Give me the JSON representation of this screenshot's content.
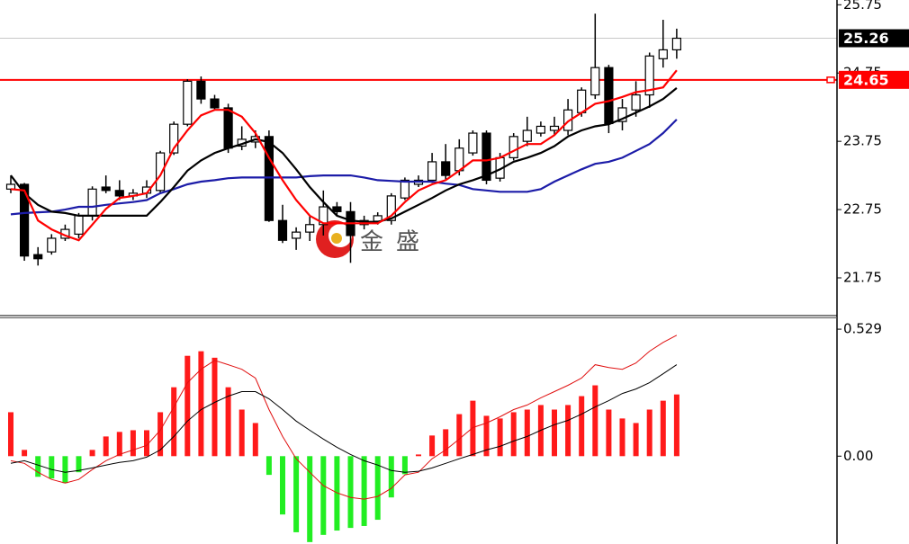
{
  "chart_data": [
    {
      "type": "candlestick",
      "open": [
        23.05,
        23.12,
        22.09,
        22.13,
        22.33,
        22.39,
        22.66,
        23.08,
        23.03,
        22.95,
        22.99,
        23.03,
        23.58,
        24.0,
        24.63,
        24.37,
        24.24,
        23.68,
        23.74,
        23.82,
        22.59,
        22.33,
        22.42,
        22.53,
        22.79,
        22.72,
        22.53,
        22.58,
        22.59,
        22.92,
        23.12,
        23.18,
        23.45,
        23.32,
        23.58,
        23.87,
        23.21,
        23.51,
        23.75,
        23.87,
        23.91,
        23.91,
        24.17,
        24.43,
        24.83,
        24.04,
        24.21,
        24.43,
        24.96,
        25.09
      ],
      "high": [
        23.25,
        23.14,
        22.2,
        22.39,
        22.53,
        22.7,
        23.09,
        23.25,
        23.18,
        23.05,
        23.18,
        23.61,
        24.04,
        24.66,
        24.7,
        24.43,
        24.3,
        23.97,
        23.91,
        23.91,
        22.82,
        22.49,
        22.66,
        23.03,
        22.86,
        22.86,
        22.66,
        22.71,
        22.99,
        23.22,
        23.25,
        23.58,
        23.71,
        23.78,
        23.91,
        23.91,
        23.58,
        23.87,
        24.11,
        24.04,
        24.11,
        24.37,
        24.54,
        25.62,
        24.87,
        24.37,
        24.63,
        25.05,
        25.53,
        25.4
      ],
      "low": [
        22.99,
        22.0,
        21.93,
        22.09,
        22.29,
        22.33,
        22.59,
        22.99,
        22.89,
        22.89,
        22.92,
        22.99,
        23.55,
        23.97,
        24.3,
        24.2,
        23.58,
        23.62,
        23.65,
        22.57,
        22.26,
        22.16,
        22.29,
        22.37,
        22.66,
        21.97,
        22.46,
        22.53,
        22.53,
        22.89,
        23.08,
        23.14,
        23.18,
        23.25,
        23.54,
        23.12,
        23.16,
        23.47,
        23.68,
        23.82,
        23.84,
        23.84,
        24.11,
        24.37,
        23.87,
        23.91,
        24.11,
        24.24,
        24.83,
        24.96
      ],
      "close": [
        23.12,
        22.07,
        22.03,
        22.33,
        22.46,
        22.66,
        23.05,
        23.03,
        22.95,
        22.99,
        23.08,
        23.58,
        24.0,
        24.63,
        24.37,
        24.24,
        23.65,
        23.78,
        23.82,
        22.59,
        22.3,
        22.42,
        22.53,
        22.79,
        22.72,
        22.37,
        22.59,
        22.66,
        22.95,
        23.18,
        23.18,
        23.45,
        23.25,
        23.65,
        23.87,
        23.18,
        23.51,
        23.82,
        23.91,
        23.97,
        23.97,
        24.21,
        24.5,
        24.83,
        24.01,
        24.24,
        24.43,
        25.0,
        25.09,
        25.26
      ],
      "up_color": "#ffffff",
      "down_color": "#000000",
      "lines": [
        {
          "color": "#1c1ca8",
          "values": [
            22.68,
            22.7,
            22.71,
            22.72,
            22.75,
            22.79,
            22.79,
            22.82,
            22.84,
            22.86,
            22.89,
            22.99,
            23.05,
            23.12,
            23.16,
            23.18,
            23.21,
            23.22,
            23.22,
            23.22,
            23.22,
            23.22,
            23.24,
            23.25,
            23.25,
            23.25,
            23.22,
            23.18,
            23.17,
            23.16,
            23.16,
            23.16,
            23.13,
            23.11,
            23.05,
            23.03,
            23.01,
            23.01,
            23.01,
            23.05,
            23.16,
            23.25,
            23.34,
            23.42,
            23.45,
            23.51,
            23.61,
            23.71,
            23.87,
            24.07
          ]
        },
        {
          "color": "#000000",
          "values": [
            23.25,
            22.99,
            22.82,
            22.72,
            22.7,
            22.66,
            22.66,
            22.66,
            22.66,
            22.66,
            22.66,
            22.86,
            23.08,
            23.32,
            23.47,
            23.58,
            23.65,
            23.71,
            23.78,
            23.74,
            23.58,
            23.34,
            23.08,
            22.86,
            22.66,
            22.59,
            22.57,
            22.57,
            22.62,
            22.72,
            22.82,
            22.92,
            23.03,
            23.12,
            23.18,
            23.25,
            23.34,
            23.45,
            23.51,
            23.58,
            23.68,
            23.82,
            23.91,
            23.97,
            24.0,
            24.08,
            24.17,
            24.26,
            24.37,
            24.53
          ]
        },
        {
          "color": "#ff0000",
          "values": [
            23.05,
            23.03,
            22.59,
            22.46,
            22.37,
            22.3,
            22.53,
            22.76,
            22.92,
            22.95,
            22.99,
            23.25,
            23.65,
            23.91,
            24.13,
            24.21,
            24.21,
            24.11,
            23.87,
            23.51,
            23.18,
            22.89,
            22.66,
            22.55,
            22.55,
            22.55,
            22.55,
            22.55,
            22.66,
            22.86,
            23.03,
            23.12,
            23.18,
            23.32,
            23.47,
            23.47,
            23.51,
            23.61,
            23.71,
            23.71,
            23.84,
            24.04,
            24.17,
            24.3,
            24.34,
            24.4,
            24.47,
            24.5,
            24.54,
            24.79
          ]
        }
      ],
      "price_lines": [
        {
          "value": 25.26,
          "color": "#000000",
          "line_color": "#c8c8c8"
        },
        {
          "value": 24.65,
          "color": "#ff0000",
          "line_color": "#ff0000"
        }
      ],
      "watermark": "金盛",
      "ylim": [
        21.21,
        25.82
      ],
      "yticks": [
        21.75,
        22.75,
        23.75,
        24.75,
        25.75
      ]
    },
    {
      "type": "macd",
      "values": [
        0.183,
        0.026,
        -0.086,
        -0.093,
        -0.112,
        -0.067,
        0.026,
        0.082,
        0.101,
        0.108,
        0.108,
        0.183,
        0.287,
        0.418,
        0.437,
        0.41,
        0.287,
        0.194,
        0.138,
        -0.078,
        -0.243,
        -0.317,
        -0.358,
        -0.328,
        -0.31,
        -0.299,
        -0.291,
        -0.265,
        -0.172,
        -0.075,
        0.007,
        0.086,
        0.112,
        0.175,
        0.231,
        0.168,
        0.157,
        0.183,
        0.194,
        0.213,
        0.194,
        0.213,
        0.25,
        0.295,
        0.194,
        0.157,
        0.138,
        0.194,
        0.231,
        0.257
      ],
      "positive_color": "#ff1a1a",
      "negative_color": "#22ee22",
      "lines": [
        {
          "color": "#e01010",
          "values": [
            -0.019,
            -0.03,
            -0.067,
            -0.097,
            -0.112,
            -0.097,
            -0.056,
            -0.019,
            0.007,
            0.026,
            0.045,
            0.108,
            0.205,
            0.306,
            0.362,
            0.399,
            0.381,
            0.362,
            0.325,
            0.194,
            0.082,
            -0.011,
            -0.067,
            -0.123,
            -0.153,
            -0.172,
            -0.179,
            -0.168,
            -0.134,
            -0.078,
            -0.067,
            -0.011,
            0.026,
            0.071,
            0.119,
            0.138,
            0.164,
            0.194,
            0.213,
            0.243,
            0.269,
            0.295,
            0.325,
            0.381,
            0.369,
            0.362,
            0.388,
            0.437,
            0.474,
            0.504
          ]
        },
        {
          "color": "#000000",
          "values": [
            -0.03,
            -0.019,
            -0.037,
            -0.056,
            -0.067,
            -0.06,
            -0.049,
            -0.037,
            -0.026,
            -0.019,
            -0.004,
            0.026,
            0.082,
            0.146,
            0.194,
            0.224,
            0.25,
            0.269,
            0.269,
            0.239,
            0.194,
            0.146,
            0.108,
            0.071,
            0.037,
            0.007,
            -0.019,
            -0.037,
            -0.06,
            -0.067,
            -0.063,
            -0.049,
            -0.03,
            -0.011,
            0.007,
            0.026,
            0.041,
            0.063,
            0.082,
            0.108,
            0.131,
            0.149,
            0.175,
            0.205,
            0.231,
            0.261,
            0.28,
            0.306,
            0.343,
            0.381
          ]
        }
      ],
      "ylim": [
        -0.366,
        0.578
      ],
      "yticks": [
        0.529,
        {
          "value": 0,
          "label": "0.00"
        }
      ]
    }
  ]
}
